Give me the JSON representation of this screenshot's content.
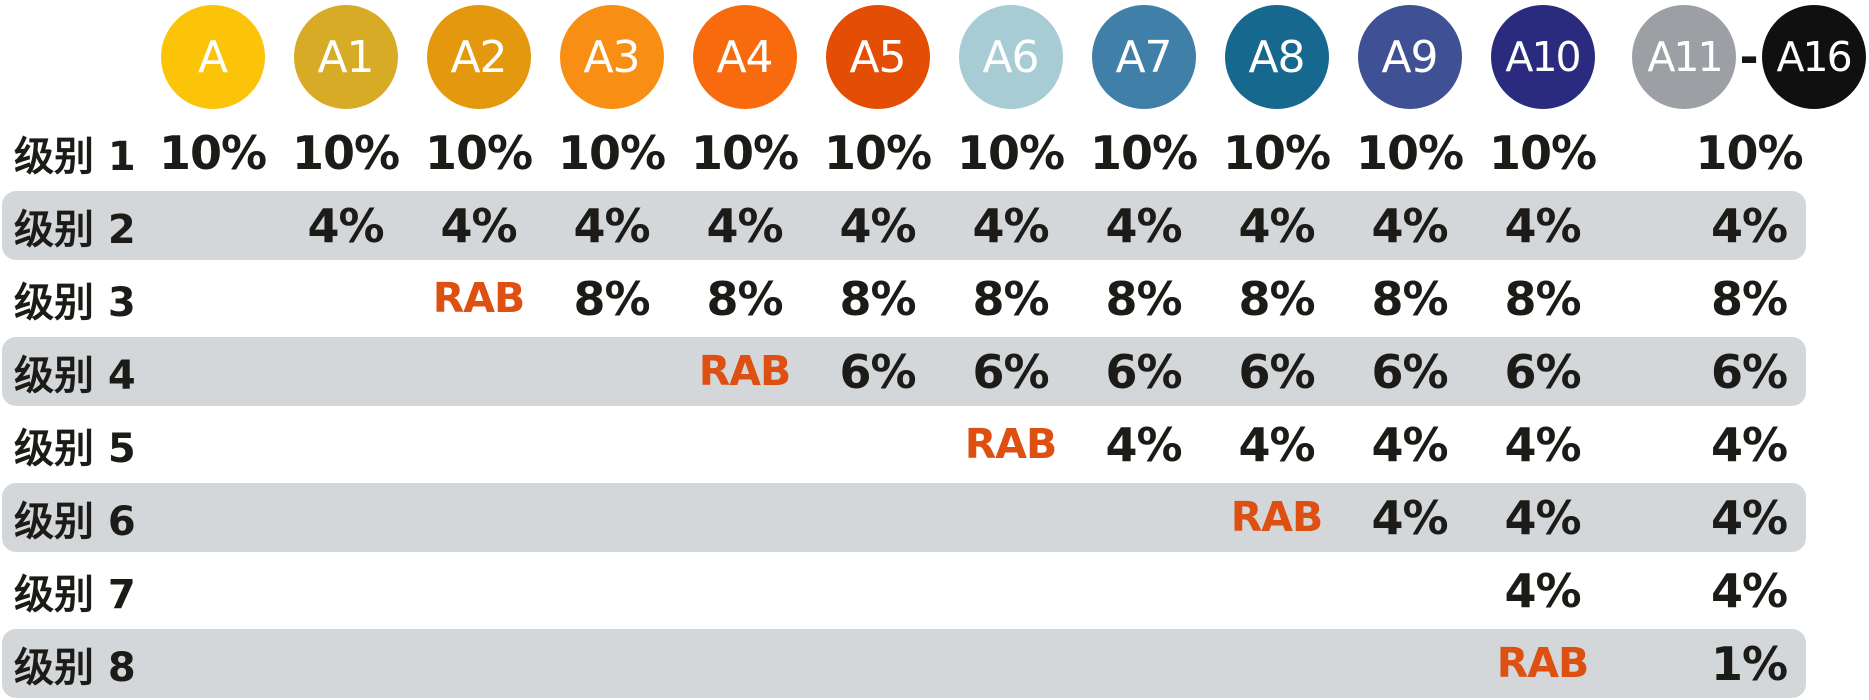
{
  "chart_data": {
    "type": "table",
    "title": "",
    "columns": [
      {
        "label": "A",
        "color": "#FCC408"
      },
      {
        "label": "A1",
        "color": "#D8AB27"
      },
      {
        "label": "A2",
        "color": "#E3980D"
      },
      {
        "label": "A3",
        "color": "#F98E15"
      },
      {
        "label": "A4",
        "color": "#F76B0E"
      },
      {
        "label": "A5",
        "color": "#E44D04"
      },
      {
        "label": "A6",
        "color": "#A8CCD4"
      },
      {
        "label": "A7",
        "color": "#3F7FA8"
      },
      {
        "label": "A8",
        "color": "#16688F"
      },
      {
        "label": "A9",
        "color": "#3F5094"
      },
      {
        "label": "A10",
        "color": "#2A2A7E"
      },
      {
        "label": "A11",
        "color": "#9CA0A5"
      },
      {
        "label": "A16",
        "color": "#101010"
      }
    ],
    "merged_last_column": {
      "start_label": "A11",
      "separator": "-",
      "end_label": "A16"
    },
    "rows": [
      {
        "label": "级别 1",
        "cells": [
          "10%",
          "10%",
          "10%",
          "10%",
          "10%",
          "10%",
          "10%",
          "10%",
          "10%",
          "10%",
          "10%",
          "10%"
        ]
      },
      {
        "label": "级别 2",
        "cells": [
          "",
          "4%",
          "4%",
          "4%",
          "4%",
          "4%",
          "4%",
          "4%",
          "4%",
          "4%",
          "4%",
          "4%"
        ]
      },
      {
        "label": "级别 3",
        "cells": [
          "",
          "",
          "RAB",
          "8%",
          "8%",
          "8%",
          "8%",
          "8%",
          "8%",
          "8%",
          "8%",
          "8%"
        ]
      },
      {
        "label": "级别 4",
        "cells": [
          "",
          "",
          "",
          "",
          "RAB",
          "6%",
          "6%",
          "6%",
          "6%",
          "6%",
          "6%",
          "6%"
        ]
      },
      {
        "label": "级别 5",
        "cells": [
          "",
          "",
          "",
          "",
          "",
          "",
          "RAB",
          "4%",
          "4%",
          "4%",
          "4%",
          "4%"
        ]
      },
      {
        "label": "级别 6",
        "cells": [
          "",
          "",
          "",
          "",
          "",
          "",
          "",
          "",
          "RAB",
          "4%",
          "4%",
          "4%"
        ]
      },
      {
        "label": "级别 7",
        "cells": [
          "",
          "",
          "",
          "",
          "",
          "",
          "",
          "",
          "",
          "",
          "4%",
          "4%"
        ]
      },
      {
        "label": "级别 8",
        "cells": [
          "",
          "",
          "",
          "",
          "",
          "",
          "",
          "",
          "",
          "",
          "RAB",
          "1%"
        ]
      }
    ],
    "colors": {
      "rab_text": "#DE4F12",
      "row_stripe": "#D3D7D9",
      "cell_text": "#1D1B18",
      "background": "#FFFFFF"
    }
  }
}
